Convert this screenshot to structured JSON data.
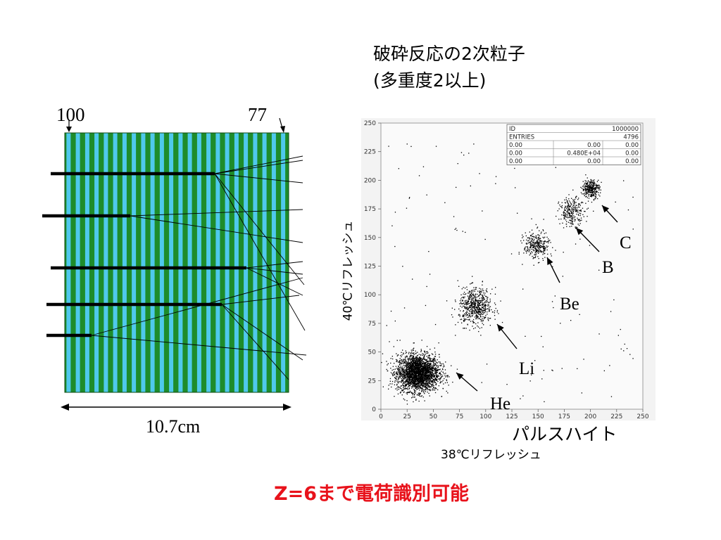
{
  "title": {
    "line1": "破砕反応の2次粒子",
    "line2": "(多重度2以上)"
  },
  "detector": {
    "label_left": "100",
    "label_right": "77",
    "width_label": "10.7cm",
    "colors": {
      "green": "#1e8c2b",
      "cyan": "#4fc9ec",
      "dark": "#000000"
    }
  },
  "note": {
    "text": "Z=6まで電荷識別可能",
    "color": "#e8121b"
  },
  "chart_data": {
    "type": "scatter",
    "xlabel": "38℃リフレッシュ",
    "xlabel_main": "パルスハイト",
    "ylabel": "40℃リフレッシュ",
    "xlim": [
      0,
      250
    ],
    "ylim": [
      0,
      250
    ],
    "xticks": [
      "0",
      "25",
      "50",
      "75",
      "100",
      "125",
      "150",
      "175",
      "200",
      "225",
      "250"
    ],
    "yticks": [
      "0",
      "25",
      "50",
      "75",
      "100",
      "125",
      "150",
      "175",
      "200",
      "225",
      "250"
    ],
    "stats_box": {
      "rows": [
        [
          "ID",
          "",
          "1000000"
        ],
        [
          "ENTRIES",
          "",
          "4796"
        ],
        [
          "0.00",
          "0.00",
          "0.00"
        ],
        [
          "0.00",
          "0.480E+04",
          "0.00"
        ],
        [
          "0.00",
          "0.00",
          "0.00"
        ]
      ]
    },
    "clusters": [
      {
        "label": "He",
        "center": [
          35,
          32
        ],
        "spread": [
          10,
          8
        ],
        "count": 2600
      },
      {
        "label": "Li",
        "center": [
          90,
          90
        ],
        "spread": [
          8,
          8
        ],
        "count": 600
      },
      {
        "label": "Be",
        "center": [
          148,
          143
        ],
        "spread": [
          6,
          6
        ],
        "count": 300
      },
      {
        "label": "B",
        "center": [
          182,
          173
        ],
        "spread": [
          6,
          6
        ],
        "count": 250
      },
      {
        "label": "C",
        "center": [
          200,
          193
        ],
        "spread": [
          4,
          4
        ],
        "count": 300
      }
    ],
    "grid": false
  }
}
